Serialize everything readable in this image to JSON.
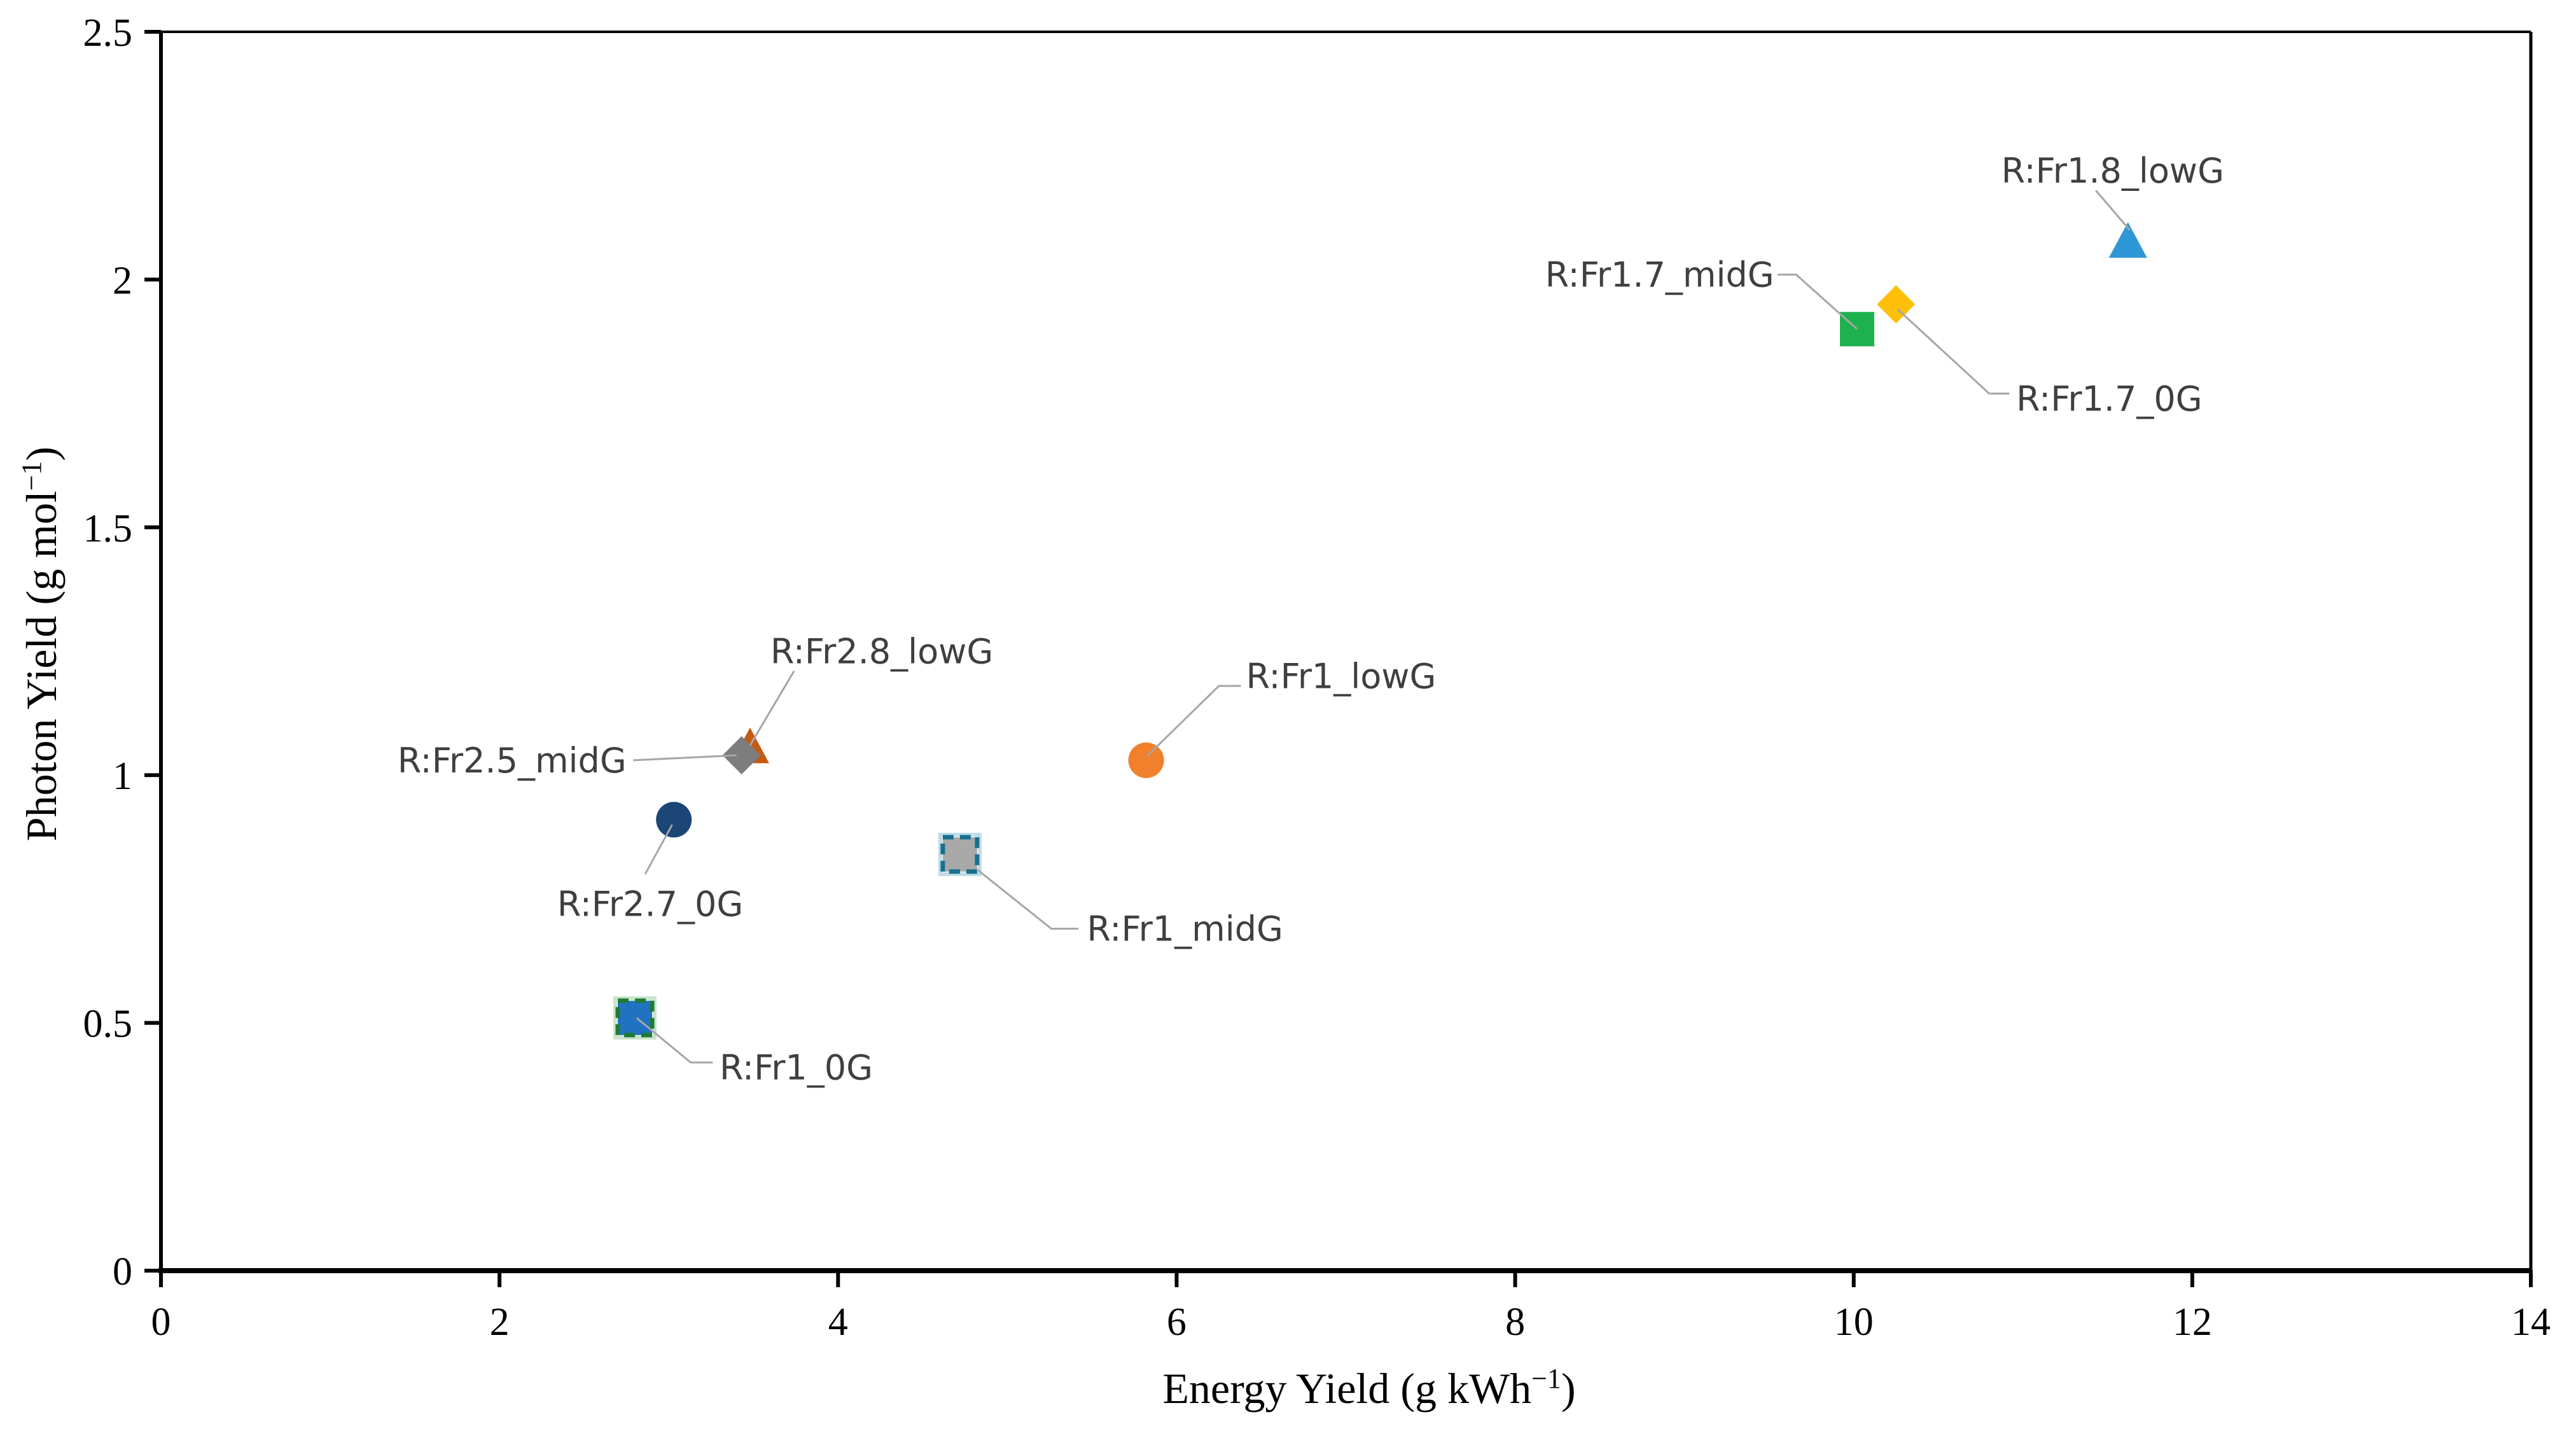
{
  "figure": {
    "background_color": "#FFFFFF",
    "axis_color": "#000000",
    "leader_line_color": "#A6A6A6",
    "callout_text_color": "#3F3F3F"
  },
  "chart_data": {
    "type": "scatter",
    "title": "",
    "xlabel_parts": {
      "main": "Energy Yield (g kWh",
      "sup": "−1",
      "end": ")"
    },
    "ylabel_parts": {
      "main": "Photon Yield (g mol",
      "sup": "−1",
      "end": ")"
    },
    "xlim": [
      0,
      14
    ],
    "ylim": [
      0,
      2.5
    ],
    "xticks": [
      {
        "value": 0,
        "label": "0"
      },
      {
        "value": 2,
        "label": "2"
      },
      {
        "value": 4,
        "label": "4"
      },
      {
        "value": 6,
        "label": "6"
      },
      {
        "value": 8,
        "label": "8"
      },
      {
        "value": 10,
        "label": "10"
      },
      {
        "value": 12,
        "label": "12"
      },
      {
        "value": 14,
        "label": "14"
      }
    ],
    "yticks": [
      {
        "value": 0,
        "label": "0"
      },
      {
        "value": 0.5,
        "label": "0.5"
      },
      {
        "value": 1,
        "label": "1"
      },
      {
        "value": 1.5,
        "label": "1.5"
      },
      {
        "value": 2,
        "label": "2"
      },
      {
        "value": 2.5,
        "label": "2.5"
      }
    ],
    "grid": false,
    "legend_position": "none",
    "points": [
      {
        "label": "R:Fr1_0G",
        "x": 2.8,
        "y": 0.51,
        "marker": "square",
        "color": "#2173C2",
        "border_color": "#1E7B34",
        "border_dashed": true,
        "halo": "#C9E3CB",
        "callout": {
          "anchor": "start",
          "tx": 3.3,
          "ty": 0.41,
          "leader": [
            [
              2.81,
              0.51
            ],
            [
              3.13,
              0.42
            ],
            [
              3.26,
              0.42
            ]
          ]
        }
      },
      {
        "label": "R:Fr2.7_0G",
        "x": 3.03,
        "y": 0.91,
        "marker": "circle",
        "color": "#1B4675",
        "callout": {
          "anchor": "middle",
          "tx": 2.89,
          "ty": 0.74,
          "leader": [
            [
              3.02,
              0.9
            ],
            [
              2.86,
              0.8
            ]
          ]
        }
      },
      {
        "label": "R:Fr2.8_lowG",
        "x": 3.48,
        "y": 1.06,
        "marker": "triangle",
        "color": "#C55A11",
        "callout": {
          "anchor": "start",
          "tx": 3.6,
          "ty": 1.25,
          "leader": [
            [
              3.74,
              1.21
            ],
            [
              3.48,
              1.06
            ]
          ]
        }
      },
      {
        "label": "R:Fr2.5_midG",
        "x": 3.43,
        "y": 1.04,
        "marker": "diamond",
        "color": "#7D7D7D",
        "callout": {
          "anchor": "end",
          "tx": 2.75,
          "ty": 1.03,
          "leader": [
            [
              2.79,
              1.03
            ],
            [
              3.4,
              1.04
            ]
          ]
        }
      },
      {
        "label": "R:Fr1_midG",
        "x": 4.72,
        "y": 0.84,
        "marker": "square",
        "color": "#A9A9A9",
        "border_color": "#17708F",
        "border_dashed": true,
        "halo": "#BFDCE8",
        "callout": {
          "anchor": "start",
          "tx": 5.47,
          "ty": 0.69,
          "leader": [
            [
              4.82,
              0.81
            ],
            [
              5.26,
              0.69
            ],
            [
              5.42,
              0.69
            ]
          ]
        }
      },
      {
        "label": "R:Fr1_lowG",
        "x": 5.82,
        "y": 1.03,
        "marker": "circle",
        "color": "#F0802B",
        "callout": {
          "anchor": "start",
          "tx": 6.41,
          "ty": 1.2,
          "leader": [
            [
              5.83,
              1.04
            ],
            [
              6.25,
              1.18
            ],
            [
              6.38,
              1.18
            ]
          ]
        }
      },
      {
        "label": "R:Fr1.7_midG",
        "x": 10.02,
        "y": 1.9,
        "marker": "square",
        "color": "#1EB24E",
        "callout": {
          "anchor": "end",
          "tx": 9.53,
          "ty": 2.01,
          "leader": [
            [
              9.55,
              2.01
            ],
            [
              9.66,
              2.01
            ],
            [
              10.02,
              1.9
            ]
          ]
        }
      },
      {
        "label": "R:Fr1.7_0G",
        "x": 10.25,
        "y": 1.95,
        "marker": "diamond",
        "color": "#FDBF07",
        "callout": {
          "anchor": "start",
          "tx": 10.96,
          "ty": 1.76,
          "leader": [
            [
              10.26,
              1.94
            ],
            [
              10.8,
              1.77
            ],
            [
              10.92,
              1.77
            ]
          ]
        }
      },
      {
        "label": "R:Fr1.8_lowG",
        "x": 11.62,
        "y": 2.08,
        "marker": "triangle",
        "color": "#2E97D5",
        "callout": {
          "anchor": "middle",
          "tx": 11.53,
          "ty": 2.22,
          "leader": [
            [
              11.43,
              2.18
            ],
            [
              11.63,
              2.1
            ]
          ]
        }
      }
    ]
  }
}
